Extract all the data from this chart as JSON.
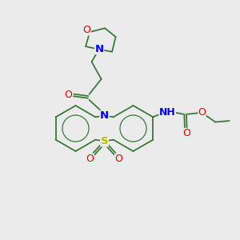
{
  "background_color": "#ebebeb",
  "bond_color": "#3a7a3a",
  "nitrogen_color": "#0000ee",
  "oxygen_color": "#ee0000",
  "sulfur_color": "#bbbb00",
  "gray_color": "#888888",
  "figsize": [
    3.0,
    3.0
  ],
  "dpi": 100,
  "xlim": [
    0,
    10
  ],
  "ylim": [
    0,
    10
  ]
}
